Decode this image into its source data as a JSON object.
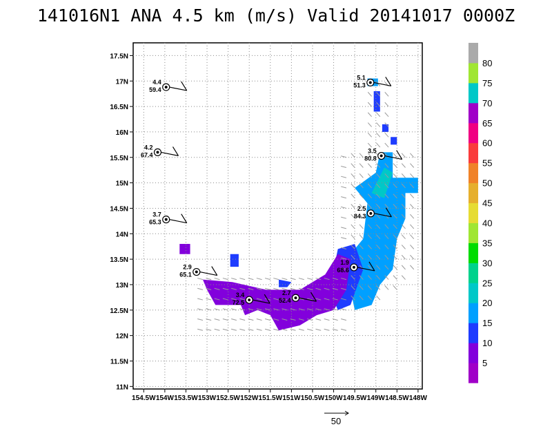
{
  "title": "141016N1 ANA 4.5 km (m/s) Valid 20141017  0000Z",
  "axes": {
    "lat_labels": [
      "11N",
      "11.5N",
      "12N",
      "12.5N",
      "13N",
      "13.5N",
      "14N",
      "14.5N",
      "15N",
      "15.5N",
      "16N",
      "16.5N",
      "17N",
      "17.5N"
    ],
    "lon_labels": [
      "154.5W",
      "154W",
      "153.5W",
      "153W",
      "152.5W",
      "152W",
      "151.5W",
      "151W",
      "150.5W",
      "150W",
      "149.5W",
      "149W",
      "148.5W",
      "148W"
    ],
    "xlim": [
      -154.75,
      -147.9
    ],
    "ylim": [
      10.95,
      17.75
    ]
  },
  "colorbar": {
    "labels": [
      "5",
      "10",
      "15",
      "20",
      "25",
      "30",
      "35",
      "40",
      "45",
      "50",
      "55",
      "60",
      "65",
      "70",
      "75",
      "80"
    ],
    "colors": [
      "#a000c8",
      "#8200dc",
      "#1e3cff",
      "#00a0ff",
      "#00c8c8",
      "#00d28c",
      "#00dc00",
      "#a0e632",
      "#e6dc32",
      "#e6af2d",
      "#f08228",
      "#fa3c3c",
      "#f00082",
      "#a000c8",
      "#00c8c8",
      "#a0e632",
      "#aaaaaa"
    ]
  },
  "reference_vector": {
    "label": "50"
  },
  "stations": [
    {
      "lon": -153.97,
      "lat": 16.88,
      "top": "4.4",
      "bottom": "59.4"
    },
    {
      "lon": -154.17,
      "lat": 15.6,
      "top": "4.2",
      "bottom": "67.4"
    },
    {
      "lon": -153.97,
      "lat": 14.28,
      "top": "3.7",
      "bottom": "65.3"
    },
    {
      "lon": -153.25,
      "lat": 13.25,
      "top": "2.9",
      "bottom": "65.1"
    },
    {
      "lon": -152.0,
      "lat": 12.7,
      "top": "3.4",
      "bottom": "72.5"
    },
    {
      "lon": -150.9,
      "lat": 12.74,
      "top": "2.7",
      "bottom": "52.4"
    },
    {
      "lon": -149.52,
      "lat": 13.34,
      "top": "1.9",
      "bottom": "68.6"
    },
    {
      "lon": -149.12,
      "lat": 14.4,
      "top": "2.5",
      "bottom": "84.3"
    },
    {
      "lon": -148.87,
      "lat": 15.53,
      "top": "3.5",
      "bottom": "80.8"
    },
    {
      "lon": -149.13,
      "lat": 16.97,
      "top": "5.1",
      "bottom": "51.3"
    }
  ]
}
